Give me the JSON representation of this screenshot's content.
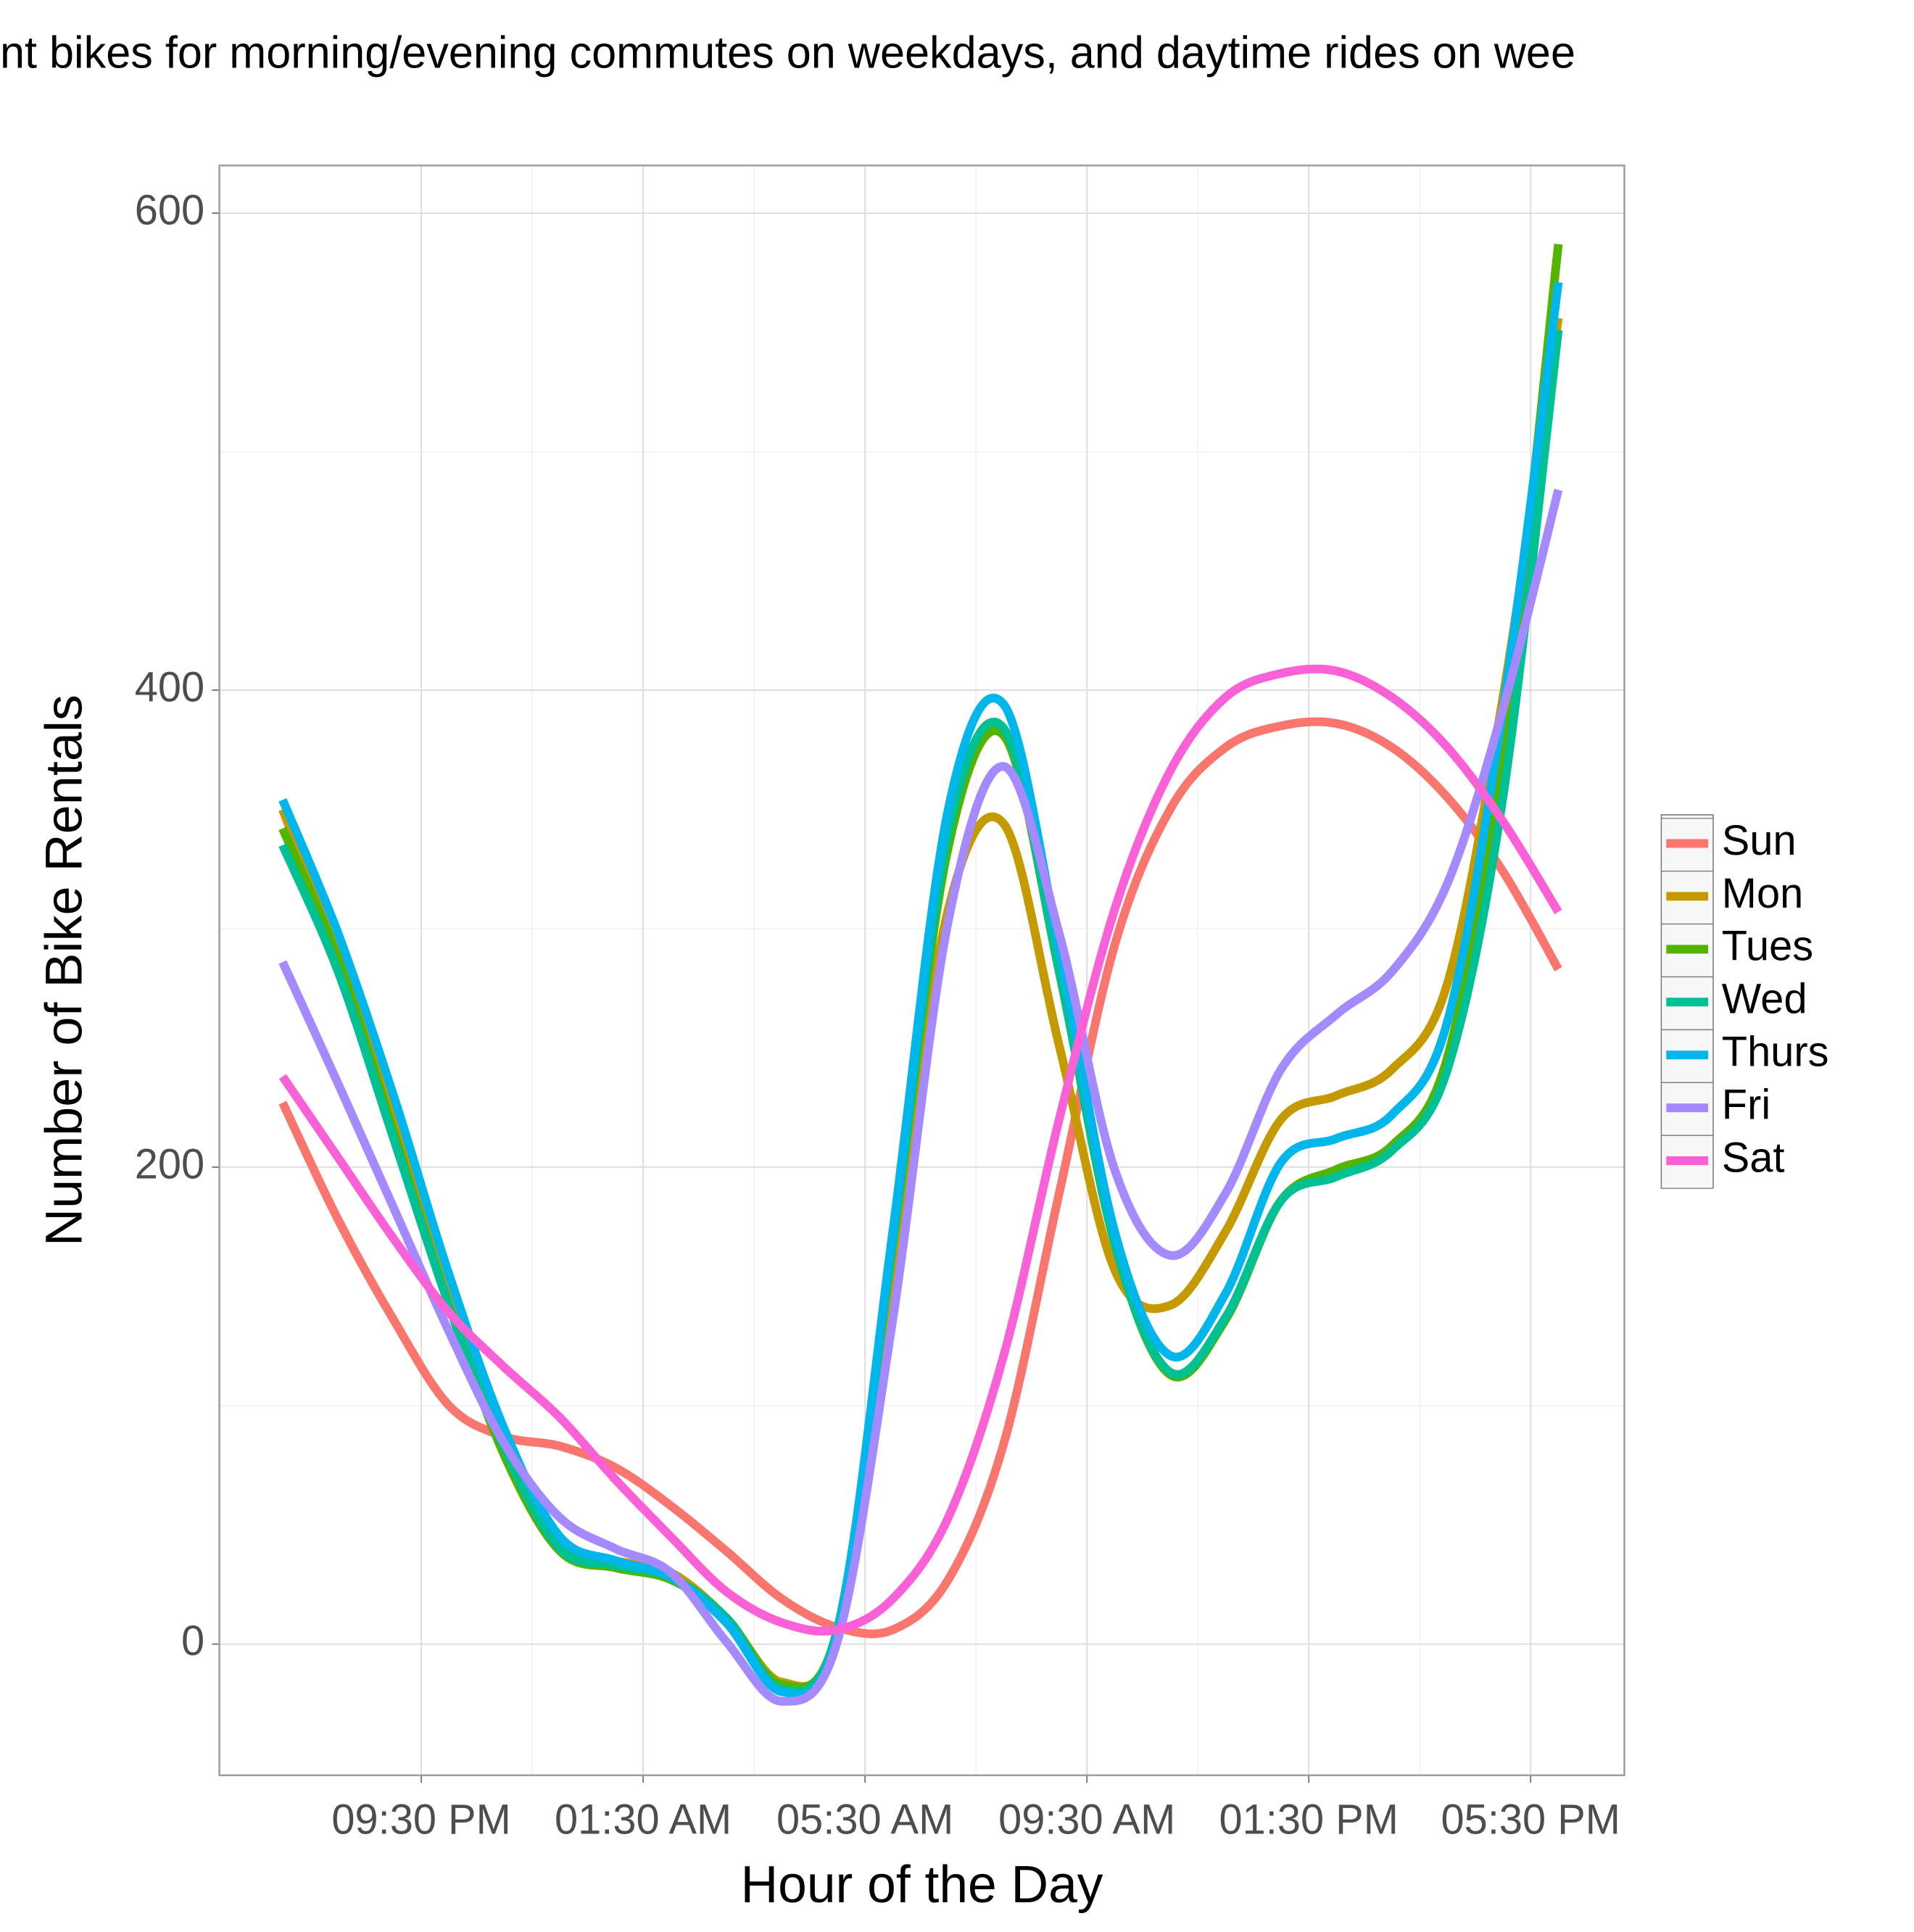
{
  "chart_data": {
    "type": "line",
    "title": "nt bikes for morning/evening commutes on weekdays, and daytime rides on wee",
    "x_label": "Hour of the Day",
    "y_label": "Number of Bike Rentals",
    "x": [
      19,
      20,
      21,
      22,
      23,
      24,
      25,
      26,
      27,
      28,
      29,
      30,
      31,
      32,
      33,
      34,
      35,
      36,
      37,
      38,
      39,
      40,
      41,
      42
    ],
    "xlim": [
      17.86,
      43.19
    ],
    "xticks": [
      {
        "value": 21.5,
        "label": "09:30 PM"
      },
      {
        "value": 25.5,
        "label": "01:30 AM"
      },
      {
        "value": 29.5,
        "label": "05:30 AM"
      },
      {
        "value": 33.5,
        "label": "09:30 AM"
      },
      {
        "value": 37.5,
        "label": "01:30 PM"
      },
      {
        "value": 41.5,
        "label": "05:30 PM"
      }
    ],
    "ylim": [
      -55,
      620
    ],
    "yticks": [
      0,
      200,
      400,
      600
    ],
    "grid": true,
    "minor_grid": true,
    "legend_position": "right",
    "series": [
      {
        "name": "Sun",
        "color": "#f8766d",
        "values": [
          227,
          178,
          136,
          100,
          87,
          83,
          74,
          58,
          39,
          19,
          7,
          6,
          27,
          84,
          189,
          293,
          350,
          376,
          385,
          386,
          376,
          355,
          324,
          283
        ]
      },
      {
        "name": "Mon",
        "color": "#c49a00",
        "values": [
          350,
          288,
          220,
          147,
          84,
          43,
          35,
          30,
          11,
          -16,
          4,
          157,
          308,
          344,
          251,
          157,
          142,
          173,
          220,
          230,
          241,
          277,
          397,
          556
        ]
      },
      {
        "name": "Tues",
        "color": "#53b400",
        "values": [
          342,
          287,
          215,
          142,
          79,
          39,
          32,
          27,
          11,
          -17,
          6,
          168,
          334,
          381,
          282,
          168,
          113,
          136,
          186,
          199,
          209,
          246,
          376,
          587
        ]
      },
      {
        "name": "Wed",
        "color": "#00c094",
        "values": [
          335,
          282,
          212,
          142,
          82,
          40,
          33,
          28,
          11,
          -19,
          6,
          168,
          340,
          384,
          282,
          168,
          114,
          137,
          186,
          196,
          207,
          241,
          355,
          551
        ]
      },
      {
        "name": "Thurs",
        "color": "#00b6eb",
        "values": [
          354,
          298,
          230,
          155,
          90,
          45,
          35,
          28,
          9,
          -20,
          4,
          173,
          350,
          394,
          292,
          173,
          121,
          147,
          202,
          212,
          222,
          261,
          392,
          571
        ]
      },
      {
        "name": "Fri",
        "color": "#a58aff",
        "values": [
          286,
          235,
          183,
          131,
          84,
          53,
          40,
          30,
          1,
          -24,
          1,
          136,
          303,
          368,
          298,
          199,
          163,
          189,
          241,
          264,
          282,
          319,
          392,
          484
        ]
      },
      {
        "name": "Sat",
        "color": "#fb61d7",
        "values": [
          238,
          204,
          170,
          139,
          116,
          95,
          69,
          45,
          22,
          9,
          6,
          19,
          53,
          121,
          220,
          308,
          366,
          397,
          407,
          408,
          397,
          376,
          345,
          307
        ]
      }
    ]
  }
}
